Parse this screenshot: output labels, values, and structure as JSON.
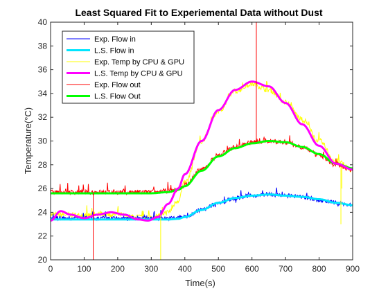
{
  "chart_data": {
    "type": "line",
    "title": "Least Squared Fit to Experiemental Data without Dust",
    "xlabel": "Time(s)",
    "ylabel": "Temperature(°C)",
    "xlim": [
      0,
      900
    ],
    "ylim": [
      20,
      40
    ],
    "xticks": [
      "0",
      "100",
      "200",
      "300",
      "400",
      "500",
      "600",
      "700",
      "800",
      "900"
    ],
    "yticks": [
      "20",
      "22",
      "24",
      "26",
      "28",
      "30",
      "32",
      "34",
      "36",
      "38",
      "40"
    ],
    "grid": false,
    "legend_position": "top-left",
    "series": [
      {
        "name": "Exp. Flow in",
        "color": "#0000ff",
        "style": "noisy",
        "x": [
          0,
          50,
          100,
          150,
          200,
          250,
          300,
          350,
          400,
          450,
          500,
          550,
          600,
          650,
          700,
          750,
          800,
          850,
          900
        ],
        "y": [
          23.5,
          23.5,
          23.5,
          23.5,
          23.5,
          23.5,
          23.5,
          23.5,
          23.6,
          24.2,
          24.8,
          25.2,
          25.4,
          25.5,
          25.4,
          25.3,
          25.0,
          24.8,
          24.6
        ]
      },
      {
        "name": "L.S. Flow in",
        "color": "#00e5ff",
        "style": "smooth",
        "x": [
          0,
          50,
          100,
          150,
          200,
          250,
          300,
          350,
          380,
          400,
          450,
          500,
          550,
          600,
          650,
          700,
          750,
          800,
          850,
          900
        ],
        "y": [
          23.4,
          23.4,
          23.4,
          23.4,
          23.4,
          23.4,
          23.4,
          23.4,
          23.45,
          23.6,
          24.2,
          24.8,
          25.2,
          25.4,
          25.5,
          25.4,
          25.3,
          25.1,
          24.8,
          24.6
        ]
      },
      {
        "name": "Exp. Temp by CPU & GPU",
        "color": "#ffff00",
        "style": "noisy",
        "x": [
          0,
          50,
          100,
          150,
          200,
          250,
          300,
          350,
          380,
          400,
          450,
          500,
          550,
          600,
          650,
          700,
          750,
          800,
          850,
          900
        ],
        "y": [
          23.8,
          23.8,
          23.7,
          23.9,
          23.8,
          23.6,
          23.6,
          24.0,
          25.0,
          26.5,
          30.0,
          32.5,
          34.2,
          34.8,
          34.3,
          33.3,
          31.8,
          30.0,
          28.3,
          27.6
        ]
      },
      {
        "name": "L.S. Temp by CPU & GPU",
        "color": "#ff00ff",
        "style": "smooth",
        "x": [
          0,
          30,
          60,
          100,
          140,
          180,
          220,
          260,
          290,
          320,
          350,
          380,
          400,
          450,
          500,
          550,
          600,
          650,
          700,
          750,
          800,
          850,
          900
        ],
        "y": [
          23.3,
          24.1,
          23.8,
          23.5,
          23.8,
          24.0,
          23.8,
          23.4,
          23.3,
          23.6,
          24.7,
          26.0,
          27.2,
          30.0,
          32.6,
          34.3,
          35.0,
          34.6,
          33.2,
          31.4,
          29.6,
          28.1,
          27.6
        ]
      },
      {
        "name": "Exp. Flow out",
        "color": "#ff0000",
        "style": "noisy",
        "x": [
          0,
          50,
          100,
          150,
          200,
          250,
          300,
          350,
          380,
          400,
          450,
          500,
          550,
          600,
          650,
          700,
          750,
          800,
          850,
          900
        ],
        "y": [
          25.7,
          25.7,
          25.7,
          25.7,
          25.7,
          25.7,
          25.7,
          25.8,
          25.9,
          26.3,
          27.6,
          28.8,
          29.5,
          29.9,
          30.0,
          29.9,
          29.5,
          28.8,
          28.0,
          27.6
        ]
      },
      {
        "name": "L.S. Flow Out",
        "color": "#00ff00",
        "style": "smooth",
        "x": [
          0,
          50,
          100,
          150,
          200,
          250,
          300,
          350,
          380,
          400,
          450,
          500,
          550,
          600,
          650,
          700,
          750,
          800,
          850,
          900
        ],
        "y": [
          25.6,
          25.6,
          25.6,
          25.6,
          25.6,
          25.6,
          25.6,
          25.7,
          25.9,
          26.2,
          27.5,
          28.7,
          29.4,
          29.8,
          30.0,
          29.9,
          29.5,
          28.9,
          28.1,
          27.7
        ]
      }
    ],
    "spikes": [
      {
        "series": "Exp. Flow out",
        "x": 127,
        "y_from": 25.7,
        "y_to": 20,
        "color": "#ff0000"
      },
      {
        "series": "Exp. Flow out",
        "x": 613,
        "y_from": 29.9,
        "y_to": 40,
        "color": "#ff0000"
      },
      {
        "series": "Exp. Temp by CPU & GPU",
        "x": 328,
        "y_from": 23.8,
        "y_to": 20,
        "color": "#ffff00"
      },
      {
        "series": "Exp. Temp by CPU & GPU",
        "x": 865,
        "y_from": 27.8,
        "y_to": 23.0,
        "color": "#ffff00"
      },
      {
        "series": "Exp. Temp by CPU & GPU",
        "x": 868,
        "y_from": 27.8,
        "y_to": 26.0,
        "color": "#ffff00"
      }
    ]
  }
}
